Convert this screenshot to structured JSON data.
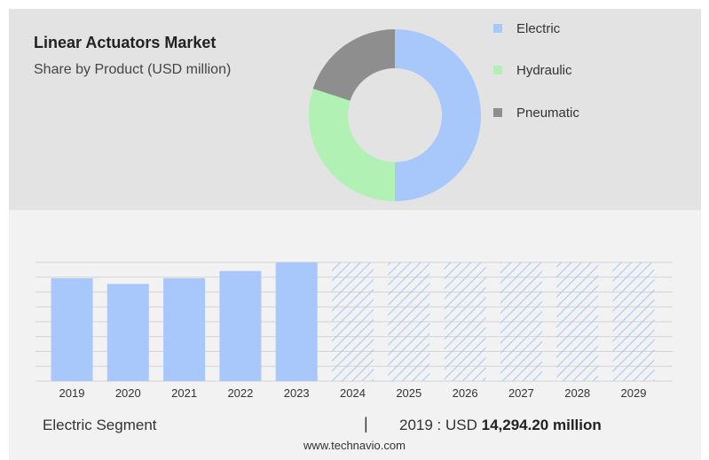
{
  "header": {
    "title": "Linear Actuators Market",
    "subtitle": "Share by Product (USD million)"
  },
  "colors": {
    "electric": "#a8c8fc",
    "hydraulic": "#b1f1b4",
    "pneumatic": "#8e8e8e",
    "forecast_hatch": "#a8c8fc"
  },
  "chart_data": [
    {
      "type": "pie",
      "variant": "donut",
      "title": "Share by Product (USD million)",
      "slices": [
        {
          "label": "Electric",
          "share": 0.5
        },
        {
          "label": "Hydraulic",
          "share": 0.3
        },
        {
          "label": "Pneumatic",
          "share": 0.2
        }
      ],
      "legend": "right"
    },
    {
      "type": "bar",
      "categories": [
        "2019",
        "2020",
        "2021",
        "2022",
        "2023",
        "2024",
        "2025",
        "2026",
        "2027",
        "2028",
        "2029"
      ],
      "values": [
        14294.2,
        13500,
        14300,
        15300,
        16500,
        null,
        null,
        null,
        null,
        null,
        null
      ],
      "forecast_categories": [
        "2024",
        "2025",
        "2026",
        "2027",
        "2028",
        "2029"
      ],
      "ylim": [
        0,
        16500
      ],
      "grid": true
    }
  ],
  "footer": {
    "segment_label": "Electric Segment",
    "separator": "|",
    "value_prefix": "2019 : USD",
    "value_bold": "14,294.20 million",
    "source": "www.technavio.com"
  }
}
